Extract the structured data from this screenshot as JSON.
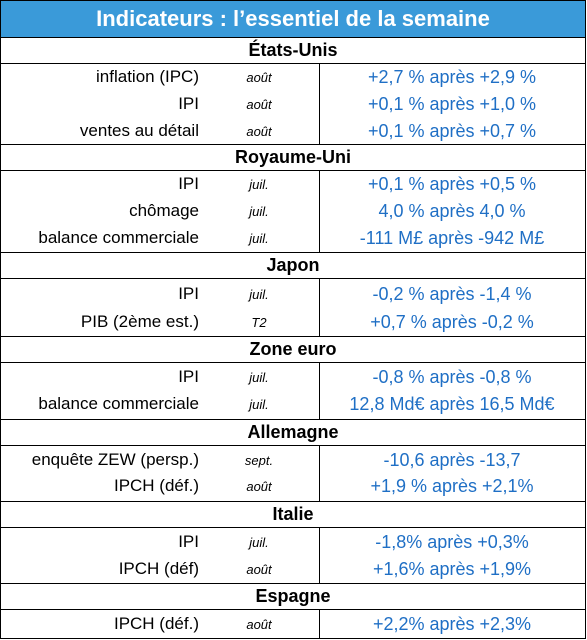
{
  "title": "Indicateurs : l’essentiel de la semaine",
  "sections": [
    {
      "name": "États-Unis",
      "rows": [
        {
          "label": "inflation (IPC)",
          "period": "août",
          "value": "+2,7 % après +2,9 %"
        },
        {
          "label": "IPI",
          "period": "août",
          "value": "+0,1 % après +1,0 %"
        },
        {
          "label": "ventes au détail",
          "period": "août",
          "value": "+0,1 % après +0,7 %"
        }
      ]
    },
    {
      "name": "Royaume-Uni",
      "rows": [
        {
          "label": "IPI",
          "period": "juil.",
          "value": "+0,1 % après +0,5 %"
        },
        {
          "label": "chômage",
          "period": "juil.",
          "value": "4,0 % après 4,0 %"
        },
        {
          "label": "balance commerciale",
          "period": "juil.",
          "value": "-111 M£ après -942 M£"
        }
      ]
    },
    {
      "name": "Japon",
      "rows": [
        {
          "label": "IPI",
          "period": "juil.",
          "value": "-0,2 % après -1,4 %"
        },
        {
          "label": "PIB (2ème est.)",
          "period": "T2",
          "value": "+0,7 % après -0,2 %"
        }
      ]
    },
    {
      "name": "Zone euro",
      "rows": [
        {
          "label": "IPI",
          "period": "juil.",
          "value": "-0,8 % après -0,8 %"
        },
        {
          "label": "balance commerciale",
          "period": "juil.",
          "value": "12,8 Md€ après 16,5 Md€"
        }
      ]
    },
    {
      "name": "Allemagne",
      "rows": [
        {
          "label": "enquête ZEW (persp.)",
          "period": "sept.",
          "value": "-10,6 après -13,7"
        },
        {
          "label": "IPCH (déf.)",
          "period": "août",
          "value": "+1,9 %  après +2,1%"
        }
      ]
    },
    {
      "name": "Italie",
      "rows": [
        {
          "label": "IPI",
          "period": "juil.",
          "value": "-1,8% après +0,3%"
        },
        {
          "label": "IPCH (déf)",
          "period": "août",
          "value": "+1,6% après +1,9%"
        }
      ]
    },
    {
      "name": "Espagne",
      "rows": [
        {
          "label": "IPCH (déf.)",
          "period": "août",
          "value": "+2,2% après +2,3%"
        }
      ]
    }
  ]
}
